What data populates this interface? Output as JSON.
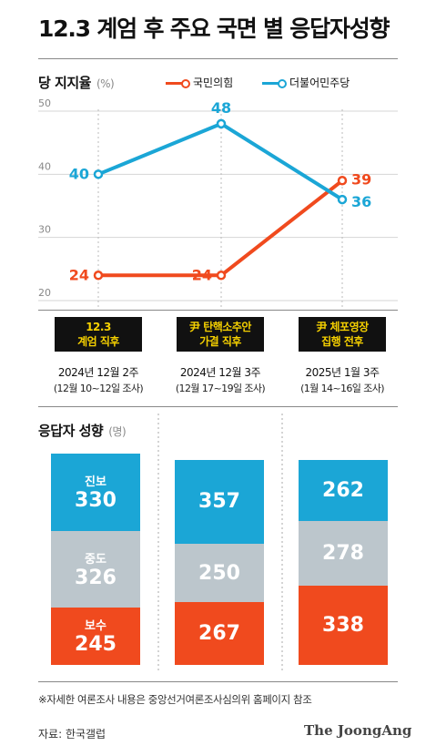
{
  "title": "12.3 계엄 후 주요 국면 별 응답자성향",
  "line_section": {
    "label": "당 지지율",
    "unit": "(%)"
  },
  "legend": [
    {
      "name": "국민의힘",
      "color": "#f04a1e"
    },
    {
      "name": "더불어민주당",
      "color": "#1ba6d6"
    }
  ],
  "periods": [
    {
      "event": [
        "12.3",
        "계엄 직후"
      ],
      "date": "2024년 12월 2주",
      "range": "(12월 10~12일 조사)"
    },
    {
      "event": [
        "尹 탄핵소추안",
        "가결 직후"
      ],
      "date": "2024년 12월 3주",
      "range": "(12월 17~19일 조사)"
    },
    {
      "event": [
        "尹 체포영장",
        "집행 전후"
      ],
      "date": "2025년 1월 3주",
      "range": "(1월 14~16일 조사)"
    }
  ],
  "bar_section": {
    "label": "응답자 성향",
    "unit": "(명)"
  },
  "segment_labels": {
    "progressive": "진보",
    "moderate": "중도",
    "conservative": "보수"
  },
  "segment_colors": {
    "progressive": "#1ba6d6",
    "moderate": "#bcc6cc",
    "conservative": "#f04a1e"
  },
  "chart_data": [
    {
      "type": "line",
      "ylabel": "당 지지율 (%)",
      "ylim": [
        20,
        50
      ],
      "yticks": [
        20,
        30,
        40,
        50
      ],
      "categories": [
        "2024년 12월 2주",
        "2024년 12월 3주",
        "2025년 1월 3주"
      ],
      "grid": true,
      "legend_position": "top-right",
      "series": [
        {
          "name": "국민의힘",
          "values": [
            24,
            24,
            39
          ],
          "color": "#f04a1e"
        },
        {
          "name": "더불어민주당",
          "values": [
            40,
            48,
            36
          ],
          "color": "#1ba6d6"
        }
      ]
    },
    {
      "type": "bar",
      "stacked": true,
      "title": "응답자 성향 (명)",
      "categories": [
        "2024년 12월 2주",
        "2024년 12월 3주",
        "2025년 1월 3주"
      ],
      "series": [
        {
          "name": "진보",
          "values": [
            330,
            357,
            262
          ]
        },
        {
          "name": "중도",
          "values": [
            326,
            250,
            278
          ]
        },
        {
          "name": "보수",
          "values": [
            245,
            267,
            338
          ]
        }
      ]
    }
  ],
  "footnote": "※자세한 여론조사 내용은 중앙선거여론조사심의위 홈페이지 참조",
  "source": "자료: 한국갤럽",
  "brand": "The JoongAng"
}
